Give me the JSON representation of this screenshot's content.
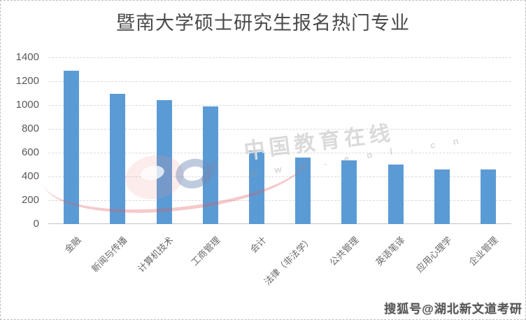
{
  "chart_data": {
    "type": "bar",
    "title": "暨南大学硕士研究生报名热门专业",
    "categories": [
      "金融",
      "新闻与传播",
      "计算机技术",
      "工商管理",
      "会计",
      "法律（非法学）",
      "公共管理",
      "英语笔译",
      "应用心理学",
      "企业管理"
    ],
    "values": [
      1290,
      1095,
      1040,
      990,
      615,
      560,
      535,
      500,
      460,
      460
    ],
    "xlabel": "",
    "ylabel": "",
    "ylim": [
      0,
      1400
    ],
    "yticks": [
      0,
      200,
      400,
      600,
      800,
      1000,
      1200,
      1400
    ],
    "grid": true,
    "legend": false,
    "bar_color": "#5B9BD5",
    "gridline_color": "#d9d9d9"
  },
  "watermark": {
    "brand_text": "中国教育在线",
    "brand_url": "w w w . e o l . c n",
    "logo": "eol-logo"
  },
  "footer": {
    "credit": "搜狐号@湖北新文道考研"
  }
}
